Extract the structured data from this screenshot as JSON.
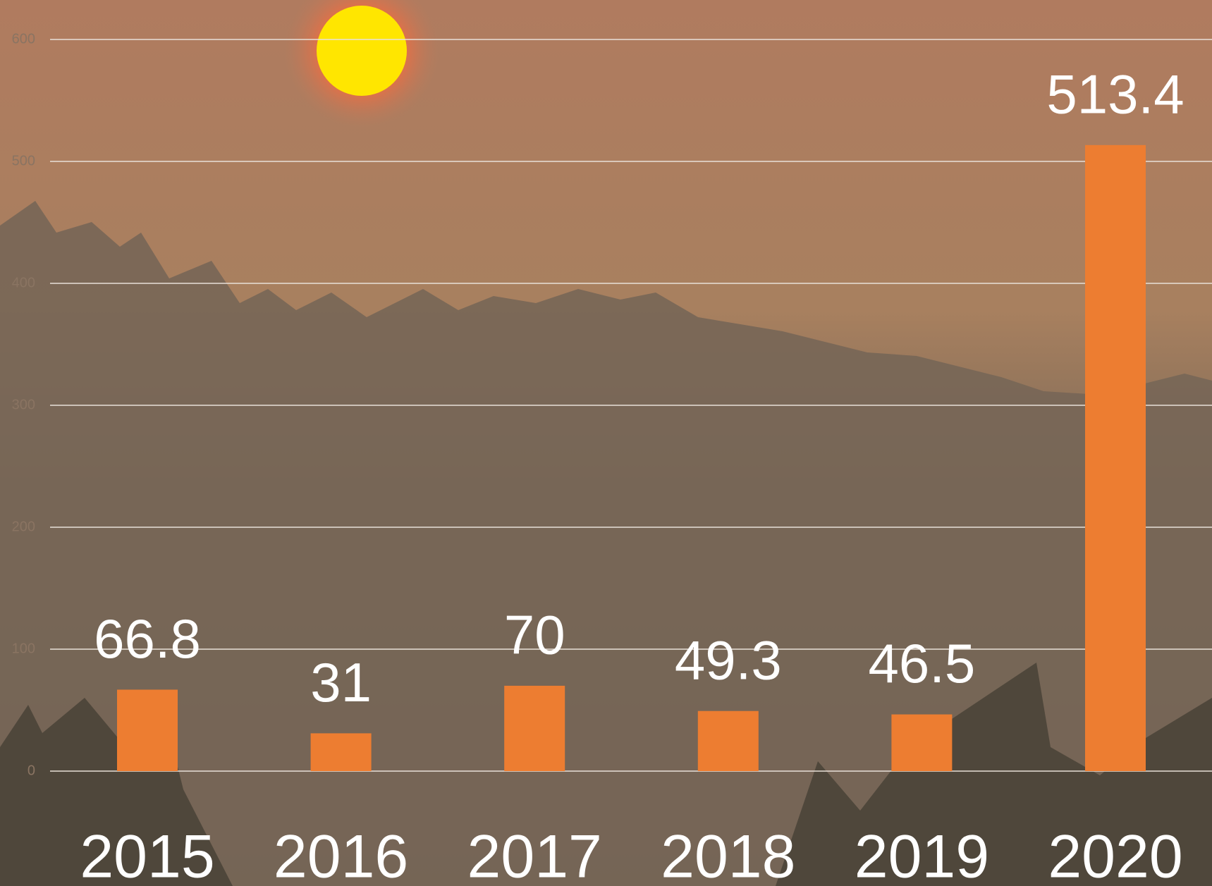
{
  "chart_data": {
    "type": "bar",
    "categories": [
      "2015",
      "2016",
      "2017",
      "2018",
      "2019",
      "2020"
    ],
    "values": [
      66.8,
      31,
      70,
      49.3,
      46.5,
      513.4
    ],
    "color": "#ed7d31",
    "ylim": [
      0,
      600
    ],
    "yticks": [
      0,
      100,
      200,
      300,
      400,
      500,
      600
    ],
    "grid": true
  }
}
